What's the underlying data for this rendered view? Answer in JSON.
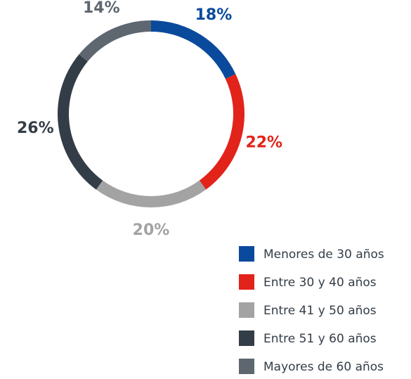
{
  "chart_data": {
    "type": "donut",
    "categories": [
      "Menores de 30 años",
      "Entre 30 y 40 años",
      "Entre 41 y 50 años",
      "Entre 51 y 60 años",
      "Mayores de 60 años"
    ],
    "values": [
      18,
      22,
      20,
      26,
      14
    ],
    "value_labels": [
      "18%",
      "22%",
      "20%",
      "26%",
      "14%"
    ],
    "colors": [
      "#0a4a9c",
      "#e2231a",
      "#a3a3a3",
      "#333d47",
      "#5e6770"
    ]
  }
}
